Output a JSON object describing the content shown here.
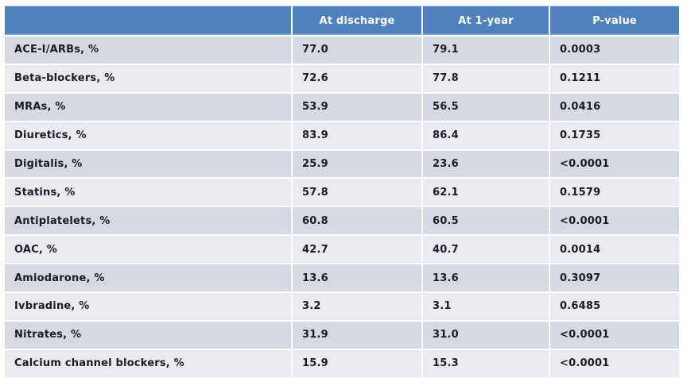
{
  "colors": {
    "header_bg": "#4f81bd",
    "header_text": "#ffffff",
    "row_band_dark": "#d4d9e3",
    "row_band_light": "#e9ebf1",
    "cell_text": "#1b1b24"
  },
  "table": {
    "headers": {
      "label": "",
      "at_discharge": "At discharge",
      "at_1_year": "At 1-year",
      "p_value": "P-value"
    },
    "rows": [
      {
        "label": "ACE-I/ARBs, %",
        "at_discharge": "77.0",
        "at_1_year": "79.1",
        "p_value": "0.0003"
      },
      {
        "label": "Beta-blockers, %",
        "at_discharge": "72.6",
        "at_1_year": "77.8",
        "p_value": "0.1211"
      },
      {
        "label": "MRAs, %",
        "at_discharge": "53.9",
        "at_1_year": "56.5",
        "p_value": "0.0416"
      },
      {
        "label": "Diuretics, %",
        "at_discharge": "83.9",
        "at_1_year": "86.4",
        "p_value": "0.1735"
      },
      {
        "label": "Digitalis, %",
        "at_discharge": "25.9",
        "at_1_year": "23.6",
        "p_value": "<0.0001"
      },
      {
        "label": "Statins, %",
        "at_discharge": "57.8",
        "at_1_year": "62.1",
        "p_value": "0.1579"
      },
      {
        "label": "Antiplatelets, %",
        "at_discharge": "60.8",
        "at_1_year": "60.5",
        "p_value": "<0.0001"
      },
      {
        "label": "OAC, %",
        "at_discharge": "42.7",
        "at_1_year": "40.7",
        "p_value": "0.0014"
      },
      {
        "label": "Amiodarone, %",
        "at_discharge": "13.6",
        "at_1_year": "13.6",
        "p_value": "0.3097"
      },
      {
        "label": "Ivbradine, %",
        "at_discharge": "3.2",
        "at_1_year": "3.1",
        "p_value": "0.6485"
      },
      {
        "label": "Nitrates, %",
        "at_discharge": "31.9",
        "at_1_year": "31.0",
        "p_value": "<0.0001"
      },
      {
        "label": "Calcium channel blockers, %",
        "at_discharge": "15.9",
        "at_1_year": "15.3",
        "p_value": "<0.0001"
      }
    ]
  },
  "chart_data": {
    "type": "table",
    "columns": [
      "",
      "At discharge",
      "At 1-year",
      "P-value"
    ],
    "rows": [
      [
        "ACE-I/ARBs, %",
        77.0,
        79.1,
        "0.0003"
      ],
      [
        "Beta-blockers, %",
        72.6,
        77.8,
        "0.1211"
      ],
      [
        "MRAs, %",
        53.9,
        56.5,
        "0.0416"
      ],
      [
        "Diuretics, %",
        83.9,
        86.4,
        "0.1735"
      ],
      [
        "Digitalis, %",
        25.9,
        23.6,
        "<0.0001"
      ],
      [
        "Statins, %",
        57.8,
        62.1,
        "0.1579"
      ],
      [
        "Antiplatelets, %",
        60.8,
        60.5,
        "<0.0001"
      ],
      [
        "OAC, %",
        42.7,
        40.7,
        "0.0014"
      ],
      [
        "Amiodarone, %",
        13.6,
        13.6,
        "0.3097"
      ],
      [
        "Ivbradine, %",
        3.2,
        3.1,
        "0.6485"
      ],
      [
        "Nitrates, %",
        31.9,
        31.0,
        "<0.0001"
      ],
      [
        "Calcium channel blockers, %",
        15.9,
        15.3,
        "<0.0001"
      ]
    ]
  }
}
